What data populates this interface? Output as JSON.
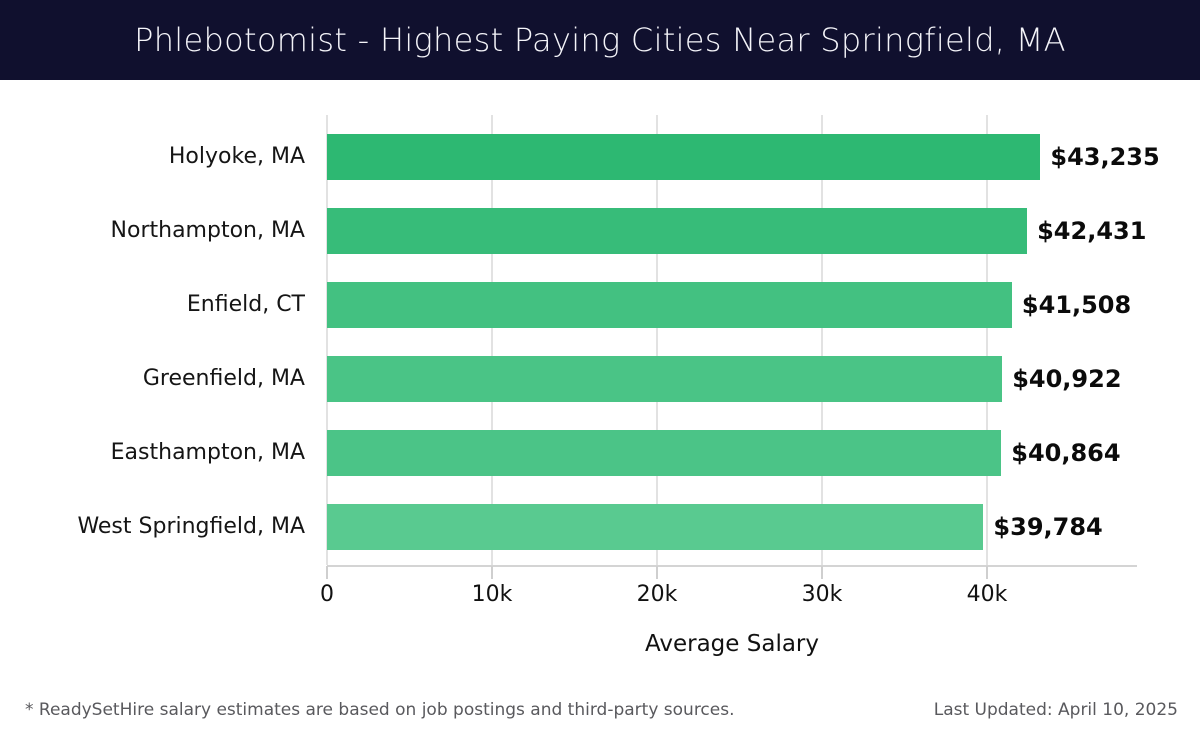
{
  "title_bar": {
    "title": "Phlebotomist - Highest Paying Cities Near Springfield, MA",
    "background_color": "#10102e",
    "text_color": "#f4f4f9"
  },
  "chart_data": {
    "type": "bar",
    "orientation": "horizontal",
    "title": "Phlebotomist - Highest Paying Cities Near Springfield, MA",
    "categories": [
      "Holyoke, MA",
      "Northampton, MA",
      "Enfield, CT",
      "Greenfield, MA",
      "Easthampton, MA",
      "West Springfield, MA"
    ],
    "values": [
      43235,
      42431,
      41508,
      40922,
      40864,
      39784
    ],
    "value_labels": [
      "$43,235",
      "$42,431",
      "$41,508",
      "$40,922",
      "$40,864",
      "$39,784"
    ],
    "bar_colors": [
      "#2db872",
      "#37bc79",
      "#43c181",
      "#4ac486",
      "#4bc487",
      "#59ca90"
    ],
    "xlabel": "Average Salary",
    "xlim": [
      0,
      49000
    ],
    "xticks": [
      {
        "value": 0,
        "label": "0"
      },
      {
        "value": 10000,
        "label": "10k"
      },
      {
        "value": 20000,
        "label": "20k"
      },
      {
        "value": 30000,
        "label": "30k"
      },
      {
        "value": 40000,
        "label": "40k"
      }
    ],
    "grid": "vertical",
    "legend": "none",
    "grid_color": "#e2e2e2",
    "axis_color": "#d4d4d4"
  },
  "footer": {
    "note": "* ReadySetHire salary estimates are based on job postings and third-party sources.",
    "last_updated": "Last Updated: April 10, 2025"
  }
}
